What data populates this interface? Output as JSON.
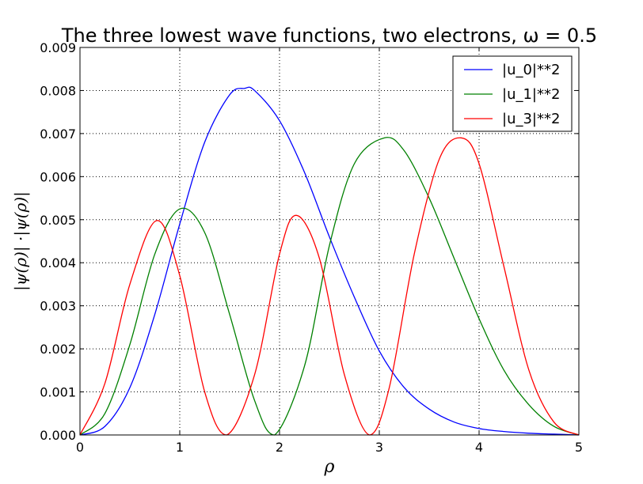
{
  "chart_data": {
    "type": "line",
    "title": "The three lowest wave functions, two electrons, ω = 0.5",
    "xlabel": "ρ",
    "ylabel": "|ψ(ρ)| ·|ψ(ρ)|",
    "xlim": [
      0,
      5
    ],
    "ylim": [
      0,
      0.009
    ],
    "xticks": [
      "0",
      "1",
      "2",
      "3",
      "4",
      "5"
    ],
    "yticks": [
      "0.000",
      "0.001",
      "0.002",
      "0.003",
      "0.004",
      "0.005",
      "0.006",
      "0.007",
      "0.008",
      "0.009"
    ],
    "grid": true,
    "legend_position": "top-right",
    "x": [
      0,
      0.25,
      0.5,
      0.75,
      1.0,
      1.25,
      1.5,
      1.65,
      1.75,
      2.0,
      2.25,
      2.5,
      2.75,
      3.0,
      3.25,
      3.5,
      3.75,
      4.0,
      4.25,
      4.5,
      4.75,
      5.0
    ],
    "series": [
      {
        "name": "|u_0|**2",
        "color": "#0000ff",
        "x": [
          0,
          0.25,
          0.5,
          0.75,
          1.0,
          1.25,
          1.5,
          1.65,
          1.75,
          2.0,
          2.25,
          2.5,
          2.75,
          3.0,
          3.25,
          3.5,
          3.75,
          4.0,
          4.25,
          4.5,
          4.75,
          5.0
        ],
        "values": [
          0,
          0.0002,
          0.0011,
          0.0028,
          0.0049,
          0.0068,
          0.0079,
          0.00805,
          0.008,
          0.0073,
          0.0061,
          0.0046,
          0.0032,
          0.00195,
          0.0011,
          0.0006,
          0.0003,
          0.00015,
          8e-05,
          4e-05,
          2e-05,
          0
        ]
      },
      {
        "name": "|u_1|**2",
        "color": "#008000",
        "x": [
          0,
          0.25,
          0.5,
          0.75,
          1.0,
          1.25,
          1.5,
          1.75,
          1.95,
          2.25,
          2.5,
          2.75,
          3.05,
          3.25,
          3.5,
          3.75,
          4.0,
          4.25,
          4.5,
          4.75,
          5.0
        ],
        "values": [
          0,
          0.0005,
          0.0021,
          0.0042,
          0.00525,
          0.0047,
          0.0028,
          0.0008,
          0,
          0.0016,
          0.0044,
          0.0063,
          0.0069,
          0.0066,
          0.0055,
          0.0041,
          0.0027,
          0.0015,
          0.0007,
          0.0002,
          0
        ]
      },
      {
        "name": "|u_3|**2",
        "color": "#ff0000",
        "x": [
          0,
          0.25,
          0.5,
          0.77,
          1.0,
          1.25,
          1.47,
          1.75,
          2.0,
          2.17,
          2.4,
          2.65,
          2.9,
          3.1,
          3.35,
          3.6,
          3.82,
          4.0,
          4.25,
          4.5,
          4.75,
          5.0
        ],
        "values": [
          0,
          0.0012,
          0.0035,
          0.00498,
          0.0037,
          0.001,
          0,
          0.0014,
          0.0042,
          0.0051,
          0.0041,
          0.0014,
          0,
          0.0011,
          0.0042,
          0.0064,
          0.0069,
          0.0063,
          0.0039,
          0.0015,
          0.0003,
          0
        ]
      }
    ]
  }
}
